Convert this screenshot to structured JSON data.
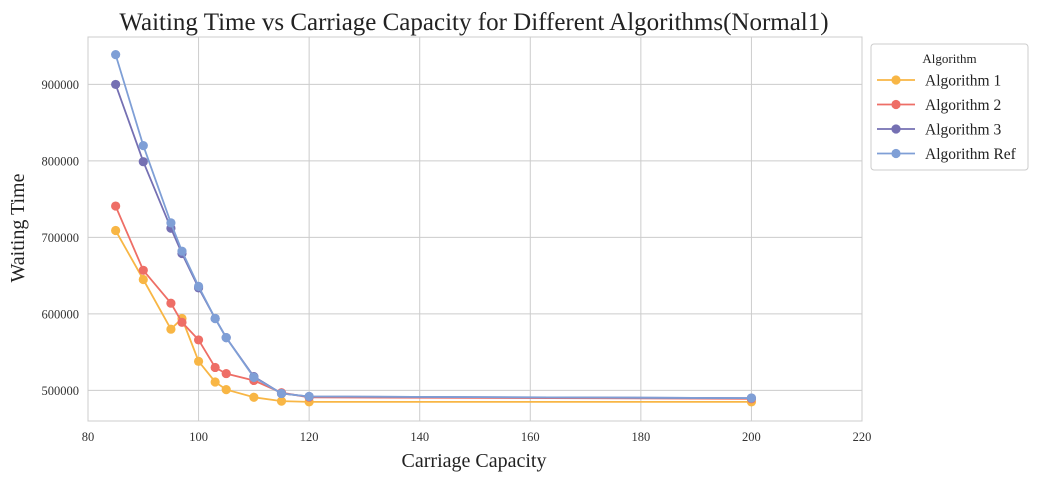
{
  "chart_data": {
    "type": "line",
    "title": "Waiting Time vs Carriage Capacity for Different Algorithms(Normal1)",
    "xlabel": "Carriage Capacity",
    "ylabel": "Waiting Time",
    "xlim": [
      80,
      220
    ],
    "ylim": [
      460000,
      962000
    ],
    "xticks": [
      80,
      100,
      120,
      140,
      160,
      180,
      200,
      220
    ],
    "yticks": [
      500000,
      600000,
      700000,
      800000,
      900000
    ],
    "grid": true,
    "legend": {
      "title": "Algorithm",
      "placement": "outside-top-right"
    },
    "x": [
      85,
      90,
      95,
      97,
      100,
      103,
      105,
      110,
      115,
      120,
      200
    ],
    "series": [
      {
        "name": "Algorithm 1",
        "color": "#f8b645",
        "values": [
          709000,
          645000,
          580000,
          594000,
          538000,
          511000,
          501000,
          491000,
          486000,
          485000,
          485000
        ]
      },
      {
        "name": "Algorithm 2",
        "color": "#ee6e66",
        "values": [
          741000,
          657000,
          614000,
          589000,
          566000,
          530000,
          522000,
          513000,
          497000,
          491000,
          489000
        ]
      },
      {
        "name": "Algorithm 3",
        "color": "#7570b3",
        "values": [
          900000,
          799000,
          712000,
          679000,
          634000,
          594000,
          569000,
          518000,
          496000,
          492000,
          490000
        ]
      },
      {
        "name": "Algorithm Ref",
        "color": "#7f9fd6",
        "values": [
          939000,
          820000,
          719000,
          682000,
          636000,
          594000,
          569000,
          517000,
          496000,
          492000,
          490000
        ]
      }
    ]
  }
}
